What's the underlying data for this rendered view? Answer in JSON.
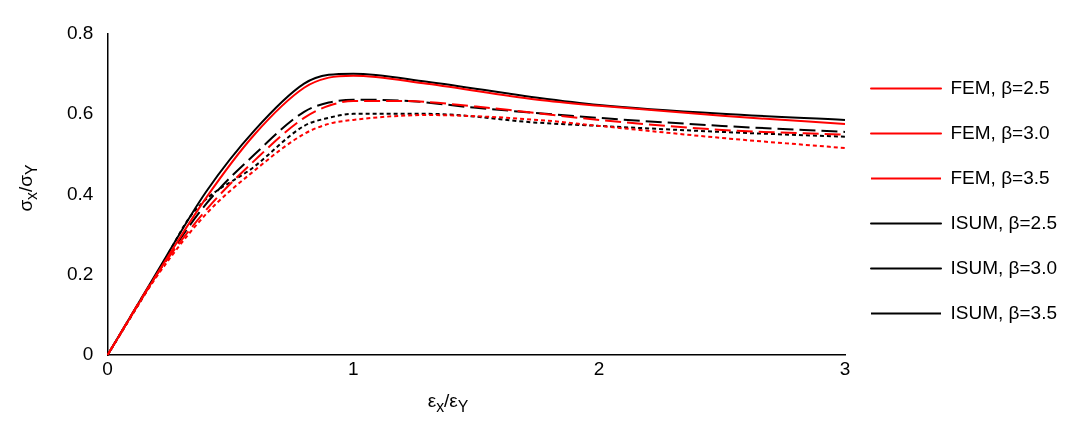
{
  "chart_data": {
    "type": "line",
    "xlabel": "ε$_{x}$/ε$_{Y}$",
    "ylabel": "σ$_{x}$/σ$_{Y}$",
    "xlim": [
      0,
      3
    ],
    "xticks": [
      0,
      1,
      2,
      3
    ],
    "ylim": [
      0,
      0.8
    ],
    "yticks": [
      0,
      0.2,
      0.4,
      0.6,
      0.8
    ],
    "grid": false,
    "legend": "right",
    "marker": "none",
    "series": [
      {
        "name": "FEM, β=2.5",
        "color": "#ff0000",
        "line_style": "solid",
        "x": [
          0,
          0.2,
          0.4,
          0.6,
          0.8,
          0.9,
          1.0,
          1.3,
          1.75,
          2,
          2.5,
          3
        ],
        "values": [
          0,
          0.2,
          0.39,
          0.55,
          0.665,
          0.69,
          0.695,
          0.675,
          0.635,
          0.62,
          0.595,
          0.575
        ]
      },
      {
        "name": "FEM, β=3.0",
        "color": "#ff0000",
        "line_style": "dashed",
        "x": [
          0,
          0.2,
          0.4,
          0.6,
          0.8,
          0.9,
          1.0,
          1.2,
          1.5,
          2,
          2.5,
          3
        ],
        "values": [
          0,
          0.2,
          0.36,
          0.485,
          0.59,
          0.62,
          0.632,
          0.632,
          0.618,
          0.585,
          0.56,
          0.548
        ]
      },
      {
        "name": "FEM, β=3.5",
        "color": "#ff0000",
        "line_style": "dotted",
        "x": [
          0,
          0.2,
          0.4,
          0.6,
          0.8,
          0.9,
          1.0,
          1.3,
          1.75,
          2,
          2.5,
          3
        ],
        "values": [
          0,
          0.195,
          0.35,
          0.46,
          0.55,
          0.575,
          0.585,
          0.597,
          0.585,
          0.57,
          0.54,
          0.515
        ]
      },
      {
        "name": "ISUM, β=2.5",
        "color": "#000000",
        "line_style": "solid",
        "x": [
          0,
          0.2,
          0.4,
          0.6,
          0.8,
          0.9,
          1.0,
          1.3,
          1.75,
          2,
          2.5,
          3
        ],
        "values": [
          0,
          0.205,
          0.405,
          0.56,
          0.675,
          0.697,
          0.7,
          0.68,
          0.64,
          0.622,
          0.6,
          0.585
        ]
      },
      {
        "name": "ISUM, β=3.0",
        "color": "#000000",
        "line_style": "dashed",
        "x": [
          0,
          0.2,
          0.4,
          0.6,
          0.8,
          0.9,
          1.0,
          1.2,
          1.5,
          2,
          2.5,
          3
        ],
        "values": [
          0,
          0.2,
          0.375,
          0.5,
          0.605,
          0.628,
          0.635,
          0.633,
          0.615,
          0.59,
          0.57,
          0.555
        ]
      },
      {
        "name": "ISUM, β=3.5",
        "color": "#000000",
        "line_style": "dotted",
        "x": [
          0,
          0.2,
          0.35,
          0.6,
          0.8,
          0.9,
          1.0,
          1.3,
          1.75,
          2,
          2.5,
          3
        ],
        "values": [
          0,
          0.2,
          0.355,
          0.47,
          0.57,
          0.59,
          0.6,
          0.6,
          0.578,
          0.57,
          0.555,
          0.543
        ]
      }
    ]
  }
}
